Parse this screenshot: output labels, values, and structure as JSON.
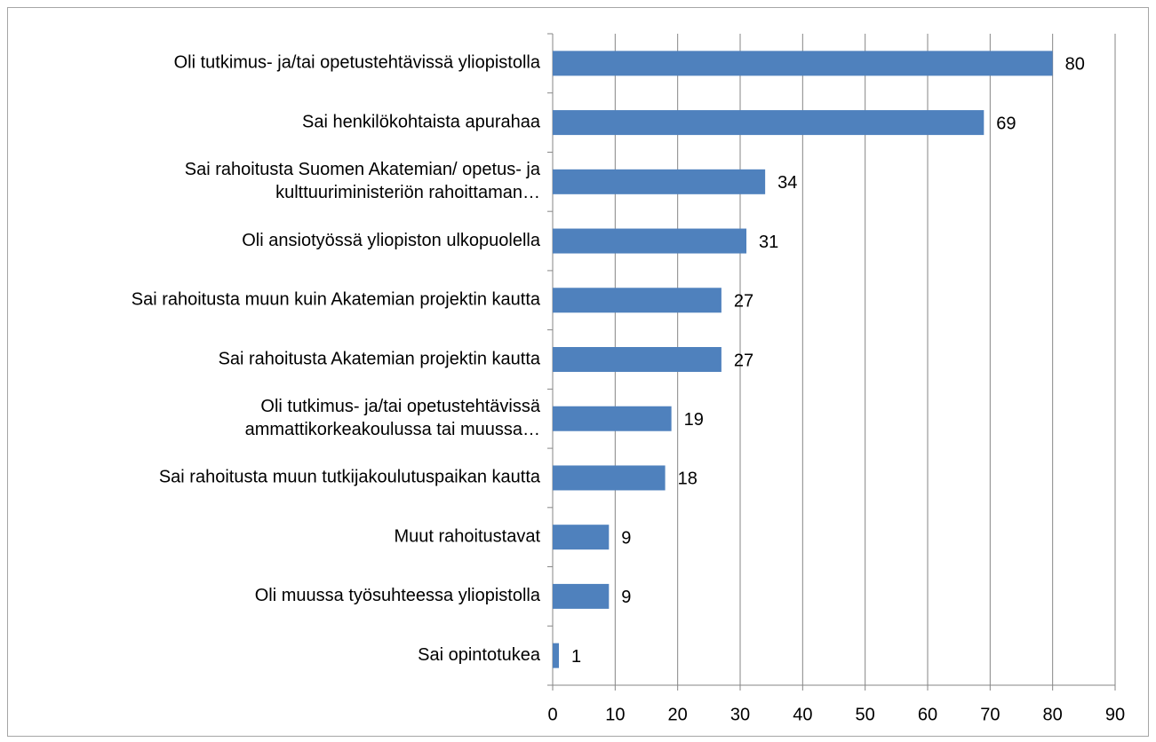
{
  "chart_data": {
    "type": "barh",
    "categories": [
      "Oli tutkimus- ja/tai opetustehtävissä yliopistolla",
      "Sai henkilökohtaista apurahaa",
      [
        "Sai rahoitusta Suomen Akatemian/ opetus- ja",
        "kulttuuriministeriön rahoittaman…"
      ],
      "Oli ansiotyössä yliopiston ulkopuolella",
      "Sai rahoitusta muun kuin Akatemian projektin kautta",
      "Sai rahoitusta Akatemian projektin kautta",
      [
        "Oli tutkimus- ja/tai opetustehtävissä",
        "ammattikorkeakoulussa tai muussa…"
      ],
      "Sai rahoitusta muun tutkijakoulutuspaikan kautta",
      "Muut rahoitustavat",
      "Oli muussa työsuhteessa yliopistolla",
      "Sai opintotukea"
    ],
    "values": [
      80,
      69,
      34,
      31,
      27,
      27,
      19,
      18,
      9,
      9,
      1
    ],
    "color": "#4f81bd",
    "xlim": [
      0,
      90
    ],
    "xticks": [
      0,
      10,
      20,
      30,
      40,
      50,
      60,
      70,
      80,
      90
    ],
    "grid": true
  }
}
